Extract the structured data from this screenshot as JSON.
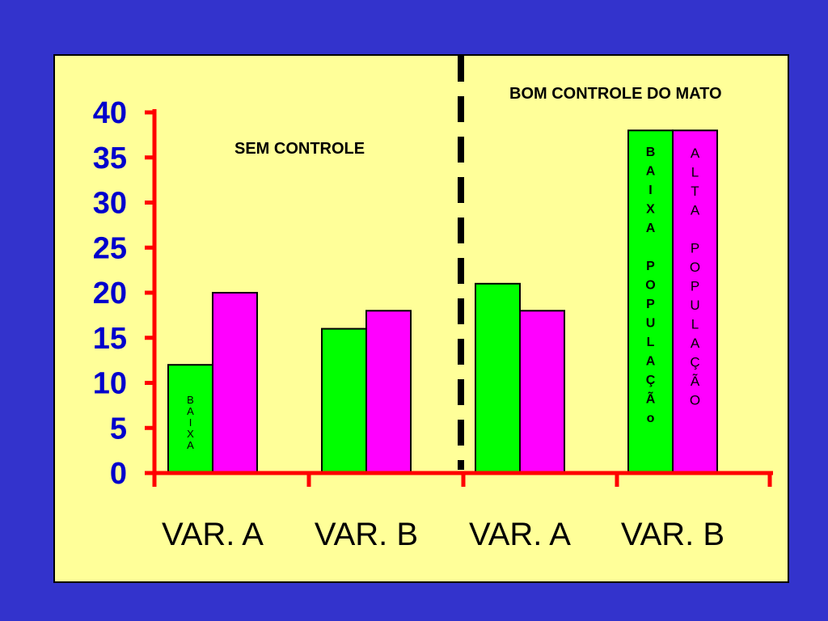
{
  "colors": {
    "background": "#3333cc",
    "panel": "#ffff99",
    "axis": "#ff0000",
    "tick_label": "#0000cc",
    "green_series": "#00ff00",
    "magenta_series": "#ff00ff",
    "divider": "#000000"
  },
  "chart_data": {
    "type": "bar",
    "categories": [
      "VAR. A",
      "VAR. B",
      "VAR. A",
      "VAR. B"
    ],
    "series": [
      {
        "color": "#00ff00",
        "values": [
          12,
          16,
          21,
          38
        ]
      },
      {
        "color": "#ff00ff",
        "values": [
          20,
          18,
          18,
          38
        ]
      }
    ],
    "ylim": [
      0,
      40
    ],
    "yticks": [
      "0",
      "5",
      "10",
      "15",
      "20",
      "25",
      "30",
      "35",
      "40"
    ],
    "grid": false,
    "annotations": {
      "left_group": "SEM CONTROLE",
      "right_group": "BOM CONTROLE DO MATO"
    },
    "bar_labels": {
      "first_green": "BAIXA",
      "last_green": "BAIXA POPULAÇÃo",
      "last_magenta": "ALTA POPULAÇÃO"
    }
  }
}
